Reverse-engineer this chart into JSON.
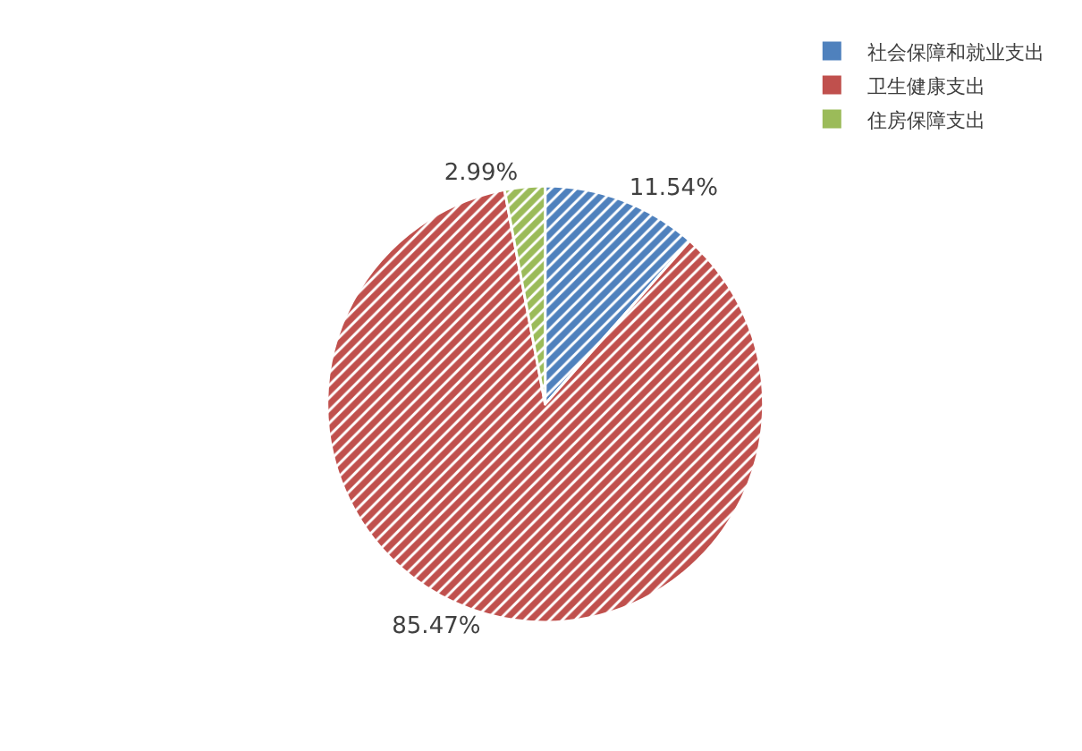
{
  "chart_data": {
    "type": "pie",
    "categories": [
      "社会保障和就业支出",
      "卫生健康支出",
      "住房保障支出"
    ],
    "values": [
      11.54,
      85.47,
      2.99
    ],
    "colors": [
      "#4f81bd",
      "#c0504d",
      "#9bbb59"
    ],
    "value_labels": [
      "11.54%",
      "85.47%",
      "2.99%"
    ],
    "legend": "top right"
  }
}
